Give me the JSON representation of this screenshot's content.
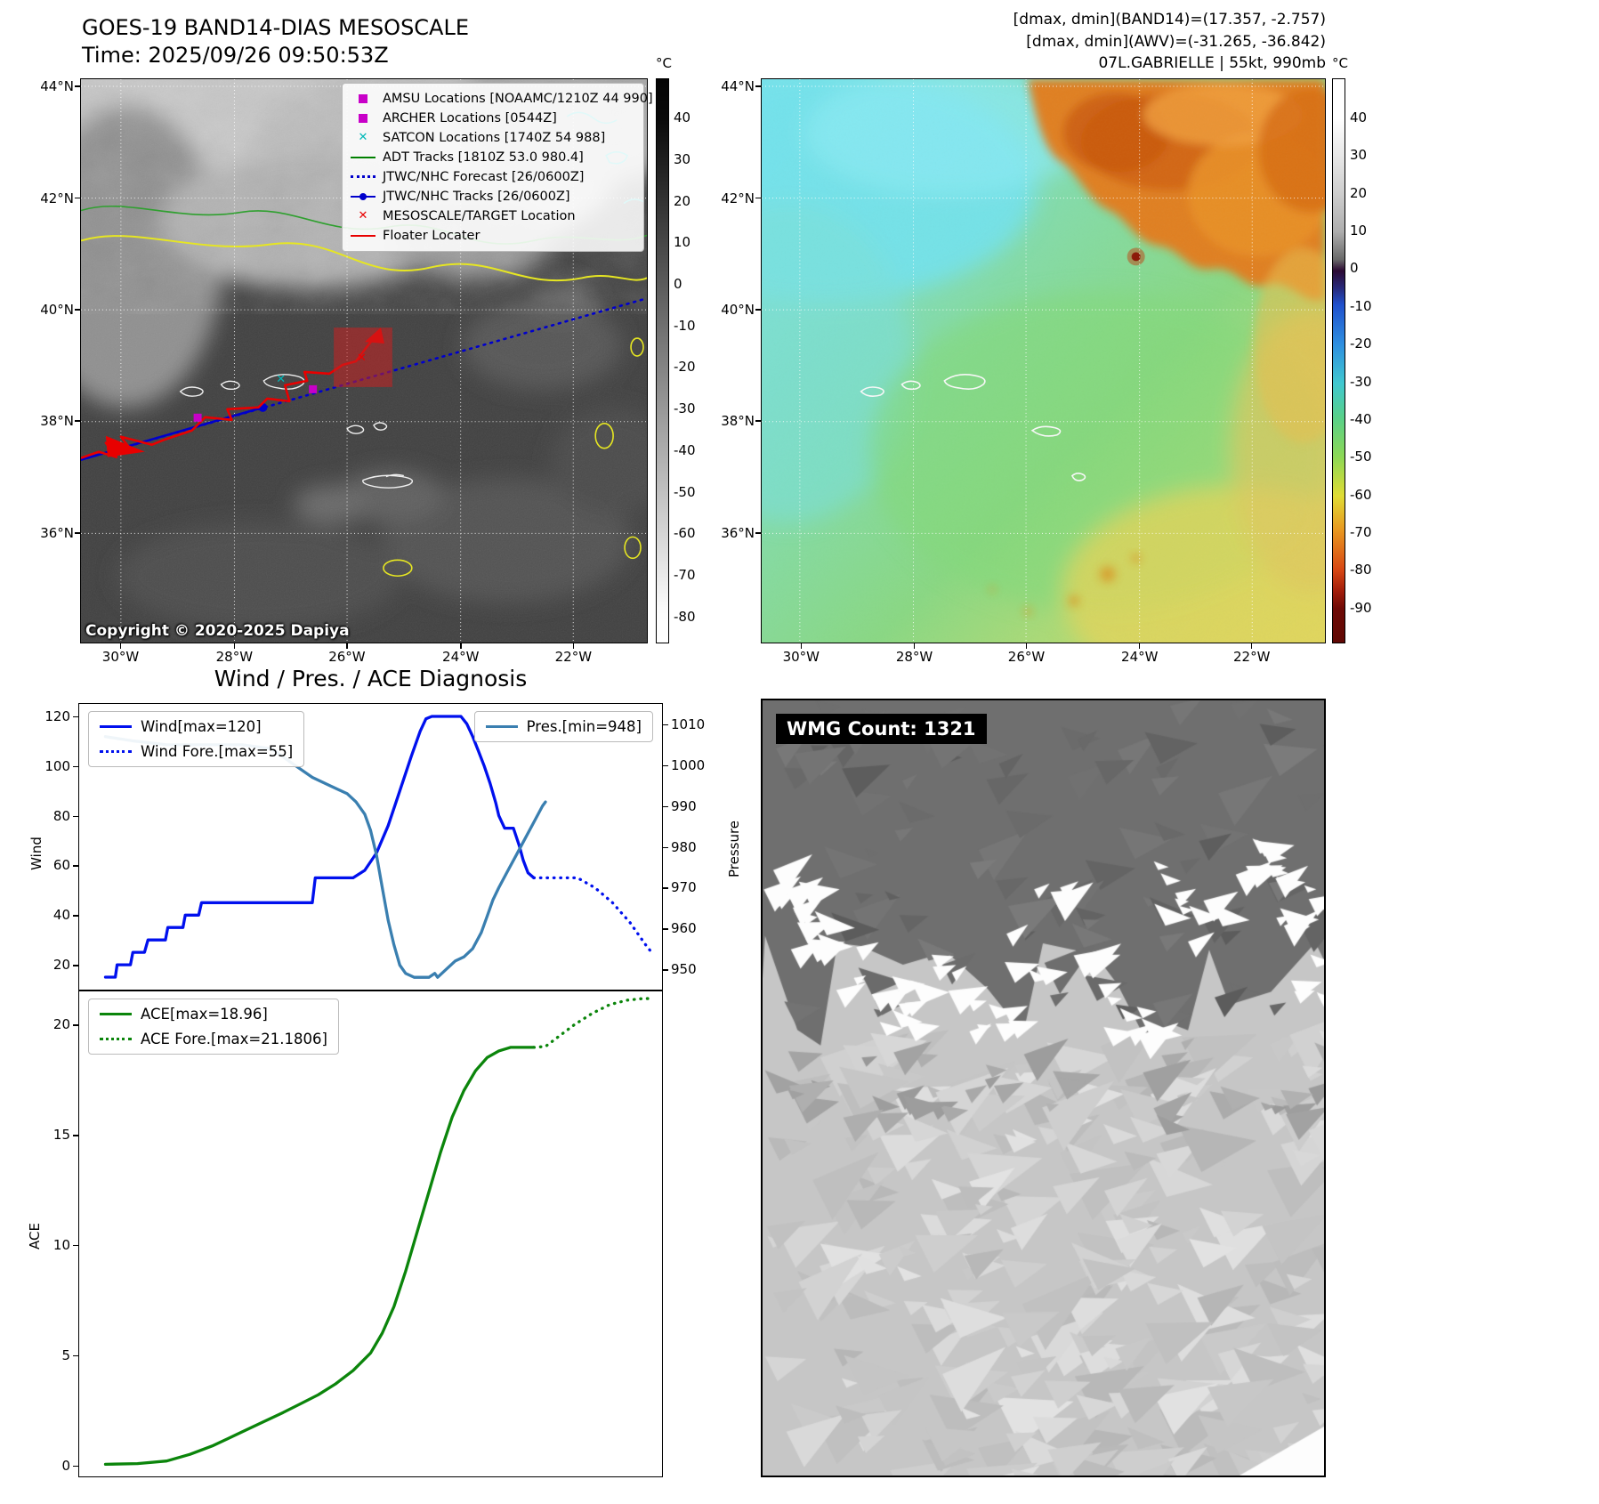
{
  "colors": {
    "wind": "#0010ee",
    "pressure": "#3a7fb0",
    "ace": "#0b850b",
    "track_red": "#e80000",
    "forecast_blue": "#0000cc",
    "adt_green": "#008000",
    "amsu_magenta": "#c800c8",
    "satcon_cyan": "#00b8b8",
    "mesoscale_box_red": "#c82020"
  },
  "band14": {
    "title": "GOES-19 BAND14-DIAS MESOSCALE",
    "time": "Time: 2025/09/26 09:50:53Z",
    "copyright": "Copyright © 2020-2025 Dapiya",
    "unit": "°C",
    "colorbar_ticks": [
      "40",
      "30",
      "20",
      "10",
      "0",
      "-10",
      "-20",
      "-30",
      "-40",
      "-50",
      "-60",
      "-70",
      "-80"
    ],
    "lat_ticks": [
      "44°N",
      "42°N",
      "40°N",
      "38°N",
      "36°N"
    ],
    "lon_ticks": [
      "30°W",
      "28°W",
      "26°W",
      "24°W",
      "22°W"
    ],
    "legend": [
      {
        "marker": "square-magenta",
        "label": "AMSU Locations [NOAAMC/1210Z 44 990]"
      },
      {
        "marker": "square-magenta",
        "label": "ARCHER Locations [0544Z]"
      },
      {
        "marker": "x-cyan",
        "label": "SATCON Locations [1740Z 54 988]"
      },
      {
        "marker": "line-green",
        "label": "ADT Tracks [1810Z 53.0 980.4]"
      },
      {
        "marker": "dotted-blue",
        "label": "JTWC/NHC Forecast [26/0600Z]"
      },
      {
        "marker": "line-dot-blue",
        "label": "JTWC/NHC Tracks [26/0600Z]"
      },
      {
        "marker": "x-red",
        "label": "MESOSCALE/TARGET Location"
      },
      {
        "marker": "line-red",
        "label": "Floater Locater"
      }
    ]
  },
  "awv": {
    "header1": "[dmax, dmin](BAND14)=(17.357, -2.757)",
    "header2": "[dmax, dmin](AWV)=(-31.265, -36.842)",
    "header3": "07L.GABRIELLE | 55kt, 990mb",
    "unit": "°C",
    "colorbar_ticks": [
      "40",
      "30",
      "20",
      "10",
      "0",
      "-10",
      "-20",
      "-30",
      "-40",
      "-50",
      "-60",
      "-70",
      "-80",
      "-90"
    ],
    "lat_ticks": [
      "44°N",
      "42°N",
      "40°N",
      "38°N",
      "36°N"
    ],
    "lon_ticks": [
      "30°W",
      "28°W",
      "26°W",
      "24°W",
      "22°W"
    ]
  },
  "wmg": {
    "label": "WMG Count: 1321"
  },
  "chart_data": [
    {
      "type": "line",
      "title": "Wind / Pres. / ACE Diagnosis",
      "grid": false,
      "legend_position": "upper-left and upper-right",
      "axes": {
        "left": {
          "label": "Wind",
          "ticks": [
            20,
            40,
            60,
            80,
            100,
            120
          ],
          "lim": [
            10,
            125
          ]
        },
        "right": {
          "label": "Pressure",
          "ticks": [
            950,
            960,
            970,
            980,
            990,
            1000,
            1010
          ],
          "lim": [
            945,
            1015
          ]
        }
      },
      "series": [
        {
          "name": "Wind[max=120]",
          "axis": "left",
          "style": "solid",
          "color": "#0010ee",
          "points": [
            [
              0.045,
              15
            ],
            [
              0.062,
              15
            ],
            [
              0.065,
              20
            ],
            [
              0.088,
              20
            ],
            [
              0.092,
              25
            ],
            [
              0.112,
              25
            ],
            [
              0.118,
              30
            ],
            [
              0.148,
              30
            ],
            [
              0.152,
              35
            ],
            [
              0.178,
              35
            ],
            [
              0.182,
              40
            ],
            [
              0.205,
              40
            ],
            [
              0.21,
              45
            ],
            [
              0.4,
              45
            ],
            [
              0.405,
              55
            ],
            [
              0.47,
              55
            ],
            [
              0.49,
              58
            ],
            [
              0.51,
              65
            ],
            [
              0.53,
              76
            ],
            [
              0.55,
              90
            ],
            [
              0.57,
              104
            ],
            [
              0.585,
              114
            ],
            [
              0.595,
              119
            ],
            [
              0.605,
              120
            ],
            [
              0.655,
              120
            ],
            [
              0.665,
              117
            ],
            [
              0.675,
              112
            ],
            [
              0.685,
              106
            ],
            [
              0.695,
              100
            ],
            [
              0.705,
              93
            ],
            [
              0.715,
              85
            ],
            [
              0.72,
              80
            ],
            [
              0.73,
              75
            ],
            [
              0.745,
              75
            ],
            [
              0.755,
              68
            ],
            [
              0.762,
              62
            ],
            [
              0.77,
              57
            ],
            [
              0.78,
              55
            ]
          ]
        },
        {
          "name": "Wind Fore.[max=55]",
          "axis": "left",
          "style": "dotted",
          "color": "#0010ee",
          "points": [
            [
              0.78,
              55
            ],
            [
              0.855,
              55
            ],
            [
              0.87,
              53
            ],
            [
              0.885,
              51
            ],
            [
              0.9,
              48
            ],
            [
              0.915,
              45
            ],
            [
              0.93,
              41
            ],
            [
              0.945,
              37
            ],
            [
              0.96,
              32
            ],
            [
              0.972,
              28
            ],
            [
              0.982,
              25
            ]
          ]
        },
        {
          "name": "Pres.[min=948]",
          "axis": "right",
          "style": "solid",
          "color": "#3a7fb0",
          "points": [
            [
              0.045,
              1007
            ],
            [
              0.09,
              1006
            ],
            [
              0.15,
              1005
            ],
            [
              0.28,
              1005
            ],
            [
              0.33,
              1004
            ],
            [
              0.37,
              1000
            ],
            [
              0.4,
              997
            ],
            [
              0.43,
              995
            ],
            [
              0.46,
              993
            ],
            [
              0.475,
              991
            ],
            [
              0.49,
              988
            ],
            [
              0.5,
              984
            ],
            [
              0.51,
              978
            ],
            [
              0.52,
              970
            ],
            [
              0.53,
              962
            ],
            [
              0.54,
              956
            ],
            [
              0.55,
              951
            ],
            [
              0.56,
              949
            ],
            [
              0.575,
              948
            ],
            [
              0.6,
              948
            ],
            [
              0.61,
              949
            ],
            [
              0.615,
              948
            ],
            [
              0.63,
              950
            ],
            [
              0.645,
              952
            ],
            [
              0.66,
              953
            ],
            [
              0.675,
              955
            ],
            [
              0.69,
              959
            ],
            [
              0.7,
              963
            ],
            [
              0.71,
              967
            ],
            [
              0.72,
              970
            ],
            [
              0.735,
              974
            ],
            [
              0.75,
              978
            ],
            [
              0.765,
              982
            ],
            [
              0.78,
              986
            ],
            [
              0.795,
              990
            ],
            [
              0.8,
              991
            ]
          ]
        }
      ]
    },
    {
      "type": "line",
      "title": "",
      "grid": false,
      "legend_position": "upper-left",
      "axes": {
        "left": {
          "label": "ACE",
          "ticks": [
            0,
            5,
            10,
            15,
            20
          ],
          "lim": [
            -0.5,
            21.5
          ]
        }
      },
      "series": [
        {
          "name": "ACE[max=18.96]",
          "axis": "left",
          "style": "solid",
          "color": "#0b850b",
          "points": [
            [
              0.045,
              0.05
            ],
            [
              0.1,
              0.08
            ],
            [
              0.15,
              0.2
            ],
            [
              0.19,
              0.5
            ],
            [
              0.23,
              0.9
            ],
            [
              0.27,
              1.4
            ],
            [
              0.31,
              1.9
            ],
            [
              0.35,
              2.4
            ],
            [
              0.38,
              2.8
            ],
            [
              0.41,
              3.2
            ],
            [
              0.44,
              3.7
            ],
            [
              0.47,
              4.3
            ],
            [
              0.5,
              5.1
            ],
            [
              0.52,
              6.0
            ],
            [
              0.54,
              7.2
            ],
            [
              0.56,
              8.8
            ],
            [
              0.58,
              10.6
            ],
            [
              0.6,
              12.4
            ],
            [
              0.62,
              14.2
            ],
            [
              0.64,
              15.8
            ],
            [
              0.66,
              17.0
            ],
            [
              0.68,
              17.9
            ],
            [
              0.7,
              18.5
            ],
            [
              0.72,
              18.8
            ],
            [
              0.74,
              18.96
            ],
            [
              0.78,
              18.96
            ]
          ]
        },
        {
          "name": "ACE Fore.[max=21.1806]",
          "axis": "left",
          "style": "dotted",
          "color": "#0b850b",
          "points": [
            [
              0.78,
              18.96
            ],
            [
              0.8,
              19.0
            ],
            [
              0.82,
              19.4
            ],
            [
              0.85,
              20.0
            ],
            [
              0.88,
              20.5
            ],
            [
              0.91,
              20.9
            ],
            [
              0.94,
              21.1
            ],
            [
              0.965,
              21.17
            ],
            [
              0.985,
              21.18
            ]
          ]
        }
      ]
    }
  ]
}
